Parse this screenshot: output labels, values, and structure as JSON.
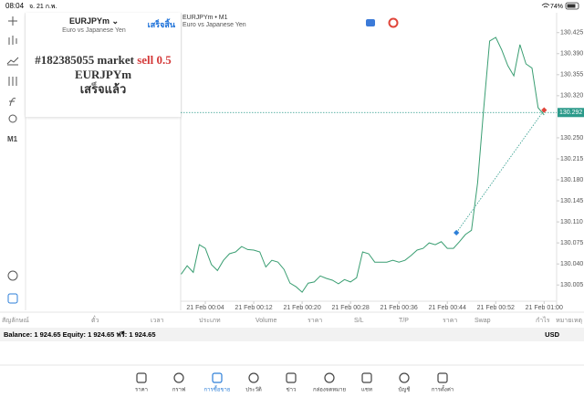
{
  "status_bar": {
    "time": "08:04",
    "date": "จ. 21 ก.พ.",
    "battery": "74%"
  },
  "toolbar": {
    "timeframe": "M1"
  },
  "order_panel": {
    "symbol": "EURJPYm",
    "description": "Euro vs Japanese Yen",
    "done_button": "เสร็จสิ้น",
    "message": {
      "order": "#182385055 market",
      "action": "sell 0.5",
      "symbol": "EURJPYm",
      "status": "เสร็จแล้ว"
    }
  },
  "chart_data": {
    "type": "line",
    "title": "EURJPYm • M1",
    "subtitle": "Euro vs Japanese Yen",
    "color": "#3a9e72",
    "categories": [
      null,
      null,
      null,
      null,
      "21 Feb 00:04",
      null,
      null,
      null,
      null,
      null,
      null,
      null,
      "21 Feb 00:12",
      null,
      null,
      null,
      null,
      null,
      null,
      null,
      "21 Feb 00:20",
      null,
      null,
      null,
      null,
      null,
      null,
      null,
      "21 Feb 00:28",
      null,
      null,
      null,
      null,
      null,
      null,
      null,
      "21 Feb 00:36",
      null,
      null,
      null,
      null,
      null,
      null,
      null,
      "21 Feb 00:44",
      null,
      null,
      null,
      null,
      null,
      null,
      null,
      "21 Feb 00:52",
      null,
      null,
      null,
      null,
      null,
      null,
      null,
      "21 Feb 01:00"
    ],
    "values": [
      130.023,
      130.037,
      130.026,
      130.072,
      130.066,
      130.039,
      130.029,
      130.046,
      130.057,
      130.06,
      130.069,
      130.064,
      130.063,
      130.06,
      130.035,
      130.046,
      130.043,
      130.031,
      130.008,
      130.002,
      129.993,
      130.008,
      130.01,
      130.02,
      130.016,
      130.013,
      130.007,
      130.014,
      130.01,
      130.017,
      130.06,
      130.057,
      130.043,
      130.043,
      130.043,
      130.046,
      130.043,
      130.046,
      130.054,
      130.063,
      130.066,
      130.075,
      130.072,
      130.077,
      130.066,
      130.066,
      130.077,
      130.089,
      130.096,
      130.175,
      130.297,
      130.411,
      130.417,
      130.396,
      130.37,
      130.353,
      130.405,
      130.373,
      130.366,
      130.3,
      130.288
    ],
    "ylim": [
      129.978,
      130.458
    ],
    "yticks": [
      130.425,
      {
        "value": 130.39,
        "label": "130.390"
      },
      130.355,
      {
        "value": 130.32,
        "label": "130.320"
      },
      {
        "value": 130.25,
        "label": "130.250"
      },
      130.215,
      {
        "value": 130.18,
        "label": "130.180"
      },
      130.145,
      {
        "value": 130.11,
        "label": "130.110"
      },
      130.075,
      {
        "value": 130.04,
        "label": "130.040"
      },
      130.005
    ],
    "current_price": 130.292,
    "current_price_color": "#2b9a8a",
    "trade": {
      "x": [
        45.5,
        60
      ],
      "values": [
        130.092,
        130.296
      ],
      "colors": [
        "#2d7fd8",
        "#e0453a"
      ]
    }
  },
  "table": {
    "columns": [
      "สัญลักษณ์",
      "ตั๋ว",
      "เวลา",
      "ประเภท",
      "Volume",
      "ราคา",
      "S/L",
      "T/P",
      "ราคา",
      "Swap",
      "กำไร",
      "หมายเหตุ"
    ]
  },
  "account": {
    "summary": "Balance: 1 924.65 Equity: 1 924.65 ฟรี: 1 924.65",
    "currency": "USD"
  },
  "nav": {
    "items": [
      "ราคา",
      "กราฟ",
      "การซื้อขาย",
      "ประวัติ",
      "ข่าว",
      "กล่องจดหมาย",
      "แชท",
      "บัญชี",
      "การตั้งค่า"
    ],
    "active": 2
  }
}
